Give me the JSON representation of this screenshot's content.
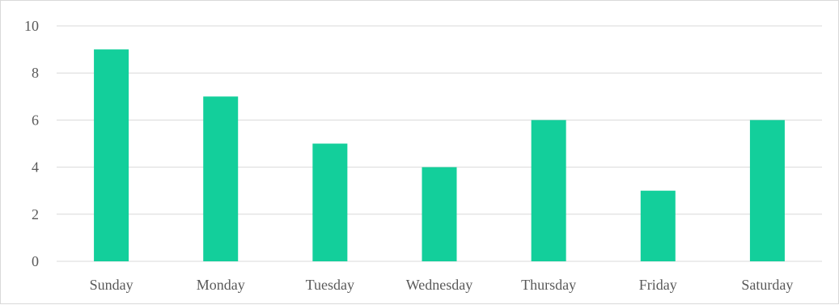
{
  "chart_data": {
    "type": "bar",
    "categories": [
      "Sunday",
      "Monday",
      "Tuesday",
      "Wednesday",
      "Thursday",
      "Friday",
      "Saturday"
    ],
    "values": [
      9,
      7,
      5,
      4,
      6,
      3,
      6
    ],
    "title": "",
    "xlabel": "",
    "ylabel": "",
    "ylim": [
      0,
      10
    ],
    "yticks": [
      0,
      2,
      4,
      6,
      8,
      10
    ],
    "grid": true,
    "bar_color": "#13CF9B",
    "legend": "none"
  }
}
